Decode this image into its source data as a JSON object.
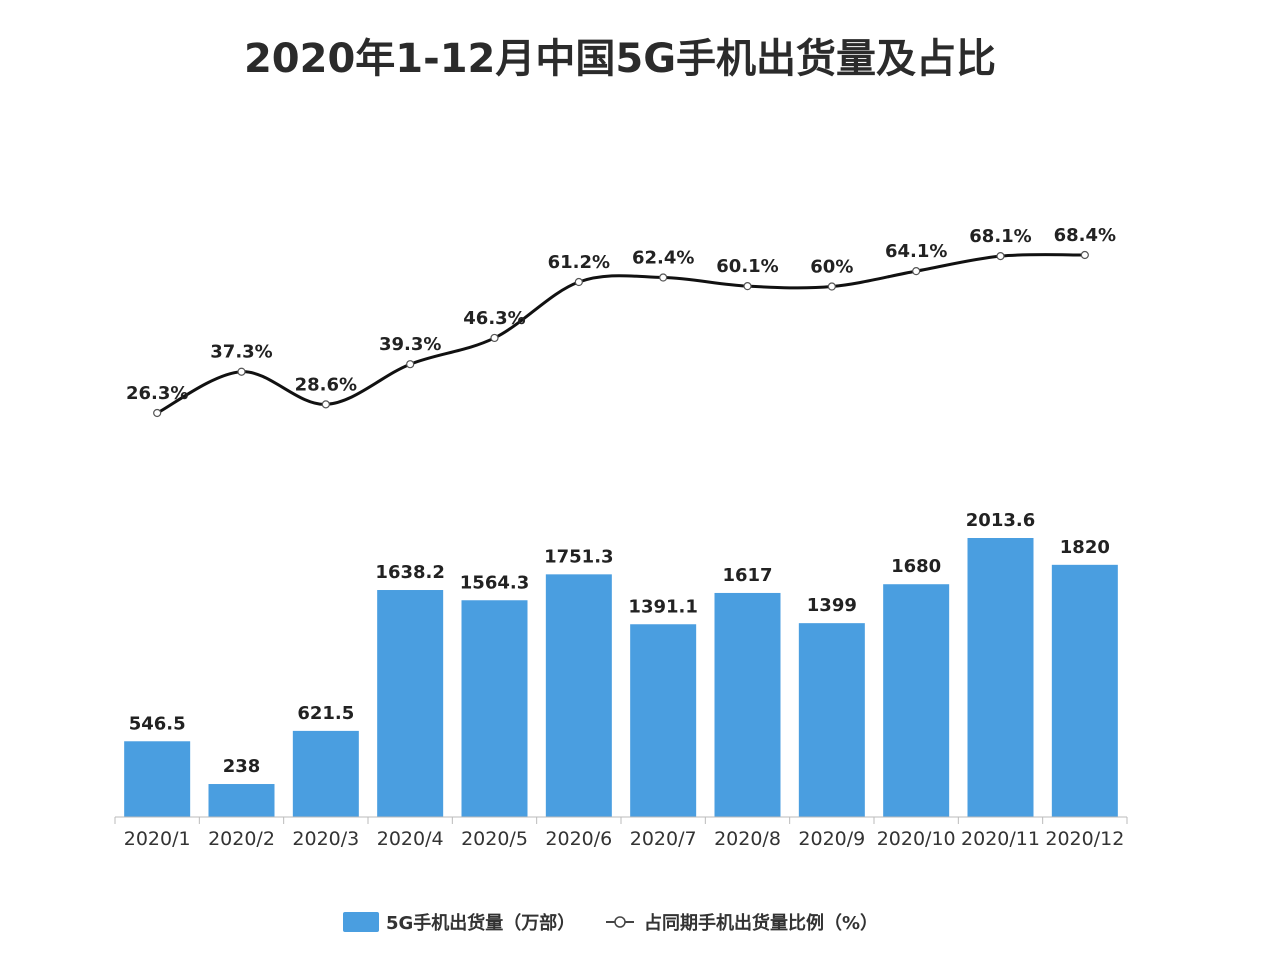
{
  "chart_data": {
    "type": "bar",
    "title": "2020年1-12月中国5G手机出货量及占比",
    "categories": [
      "2020/1",
      "2020/2",
      "2020/3",
      "2020/4",
      "2020/5",
      "2020/6",
      "2020/7",
      "2020/8",
      "2020/9",
      "2020/10",
      "2020/11",
      "2020/12"
    ],
    "series": [
      {
        "name": "5G手机出货量（万部）",
        "type": "bar",
        "values": [
          546.5,
          238,
          621.5,
          1638.2,
          1564.3,
          1751.3,
          1391.1,
          1617,
          1399,
          1680,
          2013.6,
          1820
        ],
        "labels": [
          "546.5",
          "238",
          "621.5",
          "1638.2",
          "1564.3",
          "1751.3",
          "1391.1",
          "1617",
          "1399",
          "1680",
          "2013.6",
          "1820"
        ],
        "color": "#4a9ee0"
      },
      {
        "name": "占同期手机出货量比例（%）",
        "type": "line",
        "values": [
          26.3,
          37.3,
          28.6,
          39.3,
          46.3,
          61.2,
          62.4,
          60.1,
          60,
          64.1,
          68.1,
          68.4
        ],
        "labels": [
          "26.3%",
          "37.3%",
          "28.6%",
          "39.3%",
          "46.3%",
          "61.2%",
          "62.4%",
          "60.1%",
          "60%",
          "64.1%",
          "68.1%",
          "68.4%"
        ],
        "color": "#111111"
      }
    ],
    "ylim_bar": [
      0,
      2013.6
    ],
    "ylim_line": [
      26.3,
      68.4
    ],
    "legend_position": "bottom-center",
    "grid": false,
    "xlabel": "",
    "ylabel": ""
  },
  "colors": {
    "bar": "#4a9ee0",
    "line": "#111111",
    "axis": "#bbbbbb",
    "text": "#222222"
  }
}
